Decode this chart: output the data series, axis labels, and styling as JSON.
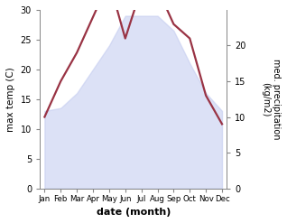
{
  "months": [
    "Jan",
    "Feb",
    "Mar",
    "Apr",
    "May",
    "Jun",
    "Jul",
    "Aug",
    "Sep",
    "Oct",
    "Nov",
    "Dec"
  ],
  "month_x": [
    0,
    1,
    2,
    3,
    4,
    5,
    6,
    7,
    8,
    9,
    10,
    11
  ],
  "temp_max": [
    13,
    13.5,
    16,
    20,
    24,
    29,
    29,
    29,
    26.5,
    21,
    16,
    13
  ],
  "precip_kg": [
    10,
    15,
    19,
    24,
    29,
    21,
    28,
    28,
    23,
    21,
    13,
    9
  ],
  "temp_ylim": [
    0,
    30
  ],
  "precip_ylim": [
    0,
    25
  ],
  "fill_color": "#c5cdf0",
  "fill_alpha": 0.6,
  "precip_line_color": "#993344",
  "precip_linewidth": 1.6,
  "left_ylabel": "max temp (C)",
  "right_ylabel": "med. precipitation\n(kg/m2)",
  "xlabel": "date (month)",
  "left_yticks": [
    0,
    5,
    10,
    15,
    20,
    25,
    30
  ],
  "right_yticks": [
    0,
    5,
    10,
    15,
    20
  ],
  "bg_color": "#ffffff"
}
